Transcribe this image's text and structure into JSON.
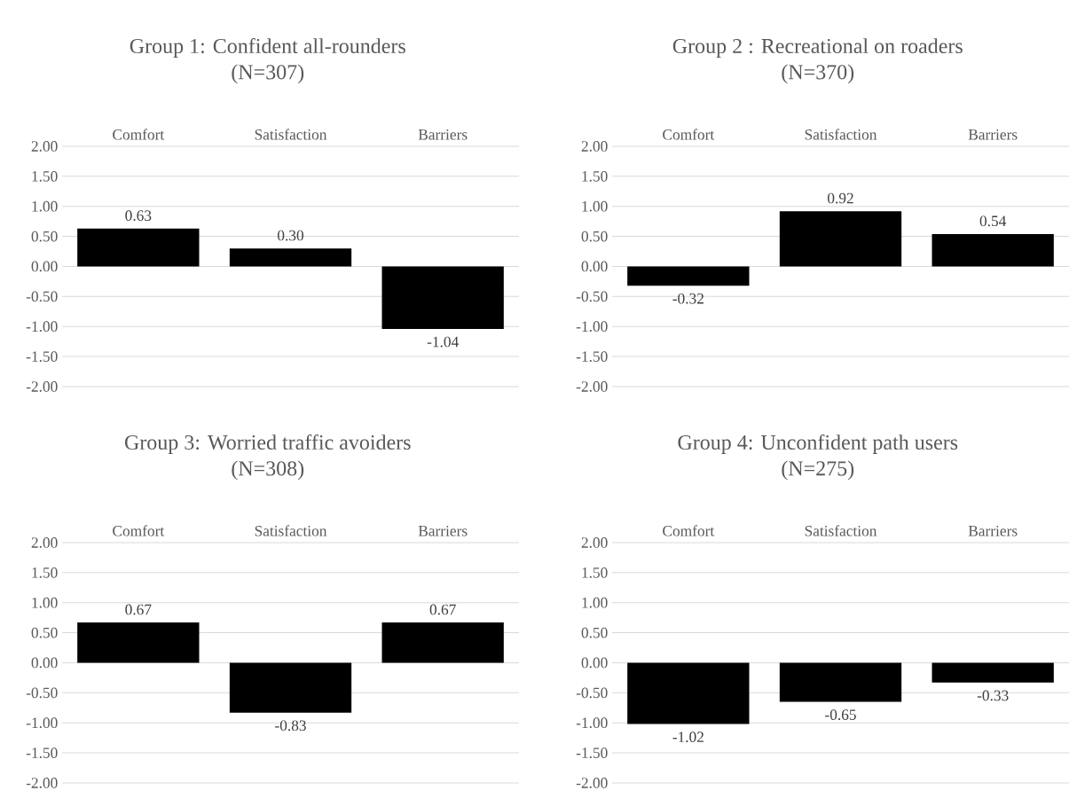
{
  "chart_data": [
    {
      "type": "bar",
      "title": "Group 1: Confident all-rounders",
      "subtitle": "(N=307)",
      "categories": [
        "Comfort",
        "Satisfaction",
        "Barriers"
      ],
      "values": [
        0.63,
        0.3,
        -1.04
      ],
      "value_labels": [
        "0.63",
        "0.30",
        "-1.04"
      ],
      "color": "#000000",
      "ylim": [
        -2,
        2
      ],
      "yticks": [
        {
          "value": -2,
          "label": "-2.00"
        },
        {
          "value": -1.5,
          "label": "-1.50"
        },
        {
          "value": -1,
          "label": "-1.00"
        },
        {
          "value": -0.5,
          "label": "-0.50"
        },
        {
          "value": 0,
          "label": "0.00"
        },
        {
          "value": 0.5,
          "label": "0.50"
        },
        {
          "value": 1,
          "label": "1.00"
        },
        {
          "value": 1.5,
          "label": "1.50"
        },
        {
          "value": 2,
          "label": "2.00"
        }
      ],
      "grid": "y"
    },
    {
      "type": "bar",
      "title": "Group 2 : Recreational on roaders",
      "subtitle": "(N=370)",
      "categories": [
        "Comfort",
        "Satisfaction",
        "Barriers"
      ],
      "values": [
        -0.32,
        0.92,
        0.54
      ],
      "value_labels": [
        "-0.32",
        "0.92",
        "0.54"
      ],
      "color": "#000000",
      "ylim": [
        -2,
        2
      ],
      "yticks": [
        {
          "value": -2,
          "label": "-2.00"
        },
        {
          "value": -1.5,
          "label": "-1.50"
        },
        {
          "value": -1,
          "label": "-1.00"
        },
        {
          "value": -0.5,
          "label": "-0.50"
        },
        {
          "value": 0,
          "label": "0.00"
        },
        {
          "value": 0.5,
          "label": "0.50"
        },
        {
          "value": 1,
          "label": "1.00"
        },
        {
          "value": 1.5,
          "label": "1.50"
        },
        {
          "value": 2,
          "label": "2.00"
        }
      ],
      "grid": "y"
    },
    {
      "type": "bar",
      "title": "Group 3: Worried traffic avoiders",
      "subtitle": "(N=308)",
      "categories": [
        "Comfort",
        "Satisfaction",
        "Barriers"
      ],
      "values": [
        0.67,
        -0.83,
        0.67
      ],
      "value_labels": [
        "0.67",
        "-0.83",
        "0.67"
      ],
      "color": "#000000",
      "ylim": [
        -2,
        2
      ],
      "yticks": [
        {
          "value": -2,
          "label": "-2.00"
        },
        {
          "value": -1.5,
          "label": "-1.50"
        },
        {
          "value": -1,
          "label": "-1.00"
        },
        {
          "value": -0.5,
          "label": "-0.50"
        },
        {
          "value": 0,
          "label": "0.00"
        },
        {
          "value": 0.5,
          "label": "0.50"
        },
        {
          "value": 1,
          "label": "1.00"
        },
        {
          "value": 1.5,
          "label": "1.50"
        },
        {
          "value": 2,
          "label": "2.00"
        }
      ],
      "grid": "y"
    },
    {
      "type": "bar",
      "title": "Group 4: Unconfident path users",
      "subtitle": "(N=275)",
      "categories": [
        "Comfort",
        "Satisfaction",
        "Barriers"
      ],
      "values": [
        -1.02,
        -0.65,
        -0.33
      ],
      "value_labels": [
        "-1.02",
        "-0.65",
        "-0.33"
      ],
      "color": "#000000",
      "ylim": [
        -2,
        2
      ],
      "yticks": [
        {
          "value": -2,
          "label": "-2.00"
        },
        {
          "value": -1.5,
          "label": "-1.50"
        },
        {
          "value": -1,
          "label": "-1.00"
        },
        {
          "value": -0.5,
          "label": "-0.50"
        },
        {
          "value": 0,
          "label": "0.00"
        },
        {
          "value": 0.5,
          "label": "0.50"
        },
        {
          "value": 1,
          "label": "1.00"
        },
        {
          "value": 1.5,
          "label": "1.50"
        },
        {
          "value": 2,
          "label": "2.00"
        }
      ],
      "grid": "y"
    }
  ]
}
